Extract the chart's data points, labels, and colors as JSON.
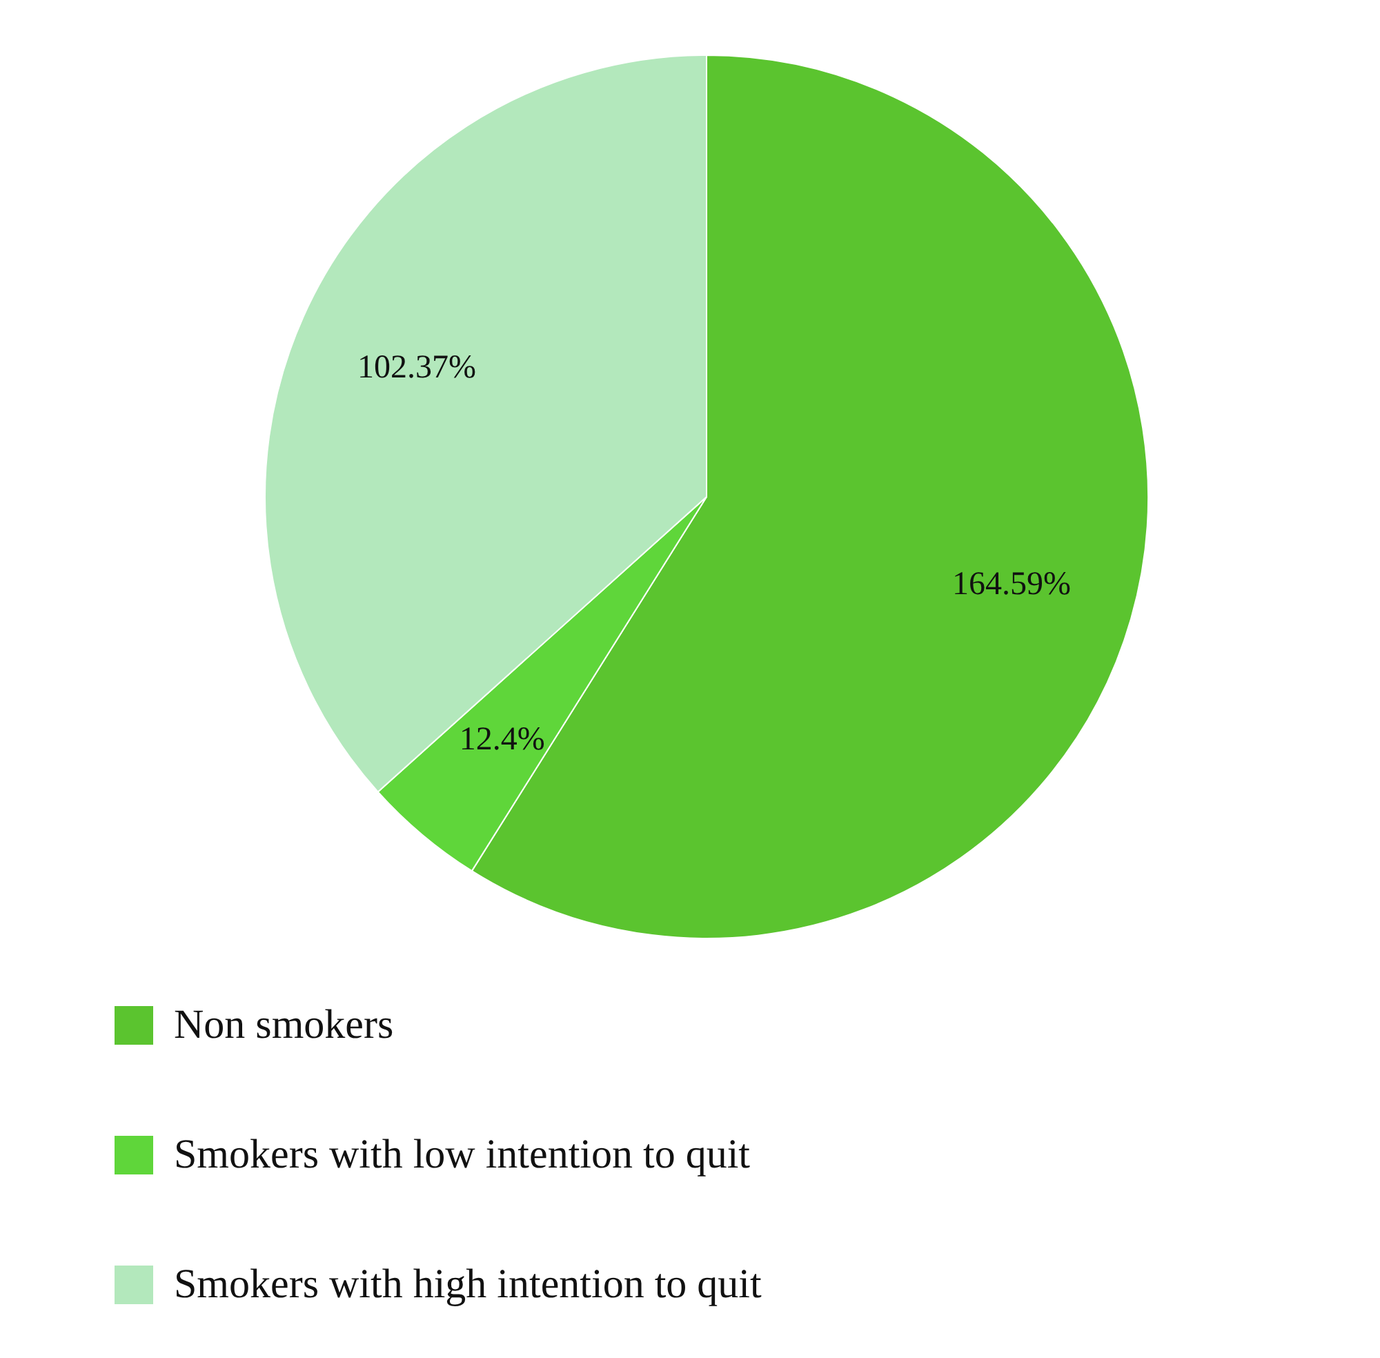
{
  "chart_data": {
    "type": "pie",
    "categories": [
      "Non smokers",
      "Smokers with low intention to quit",
      "Smokers with high intention to quit"
    ],
    "values": [
      164.59,
      12.4,
      102.37
    ],
    "colors": [
      "#5bc42f",
      "#5fd63a",
      "#b3e8bc"
    ],
    "value_labels": [
      "164.59%",
      "12.4%",
      "102.37%"
    ],
    "legend": "bottom left"
  }
}
